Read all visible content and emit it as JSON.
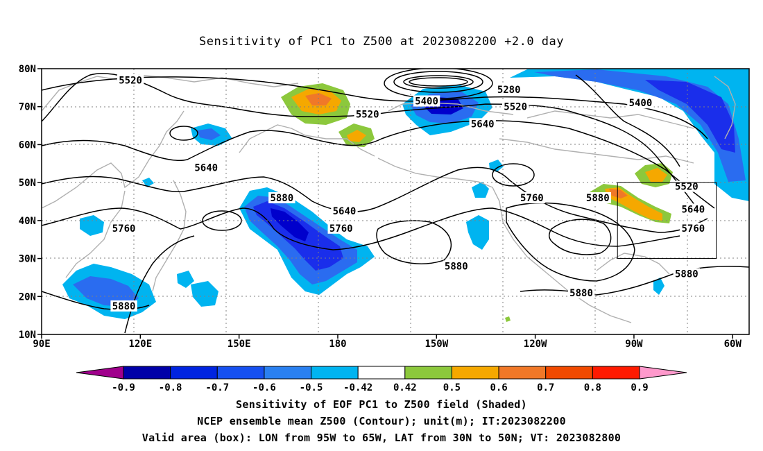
{
  "title": "Sensitivity of PC1 to Z500 at 2023082200 +2.0 day",
  "axes": {
    "lat_labels": [
      "80N",
      "70N",
      "60N",
      "50N",
      "40N",
      "30N",
      "20N",
      "10N"
    ],
    "lon_labels": [
      "90E",
      "120E",
      "150E",
      "180",
      "150W",
      "120W",
      "90W",
      "60W"
    ]
  },
  "contours": {
    "labels": [
      {
        "text": "5520",
        "lon": 117,
        "lat": 77
      },
      {
        "text": "5280",
        "lon": 232,
        "lat": 74.5
      },
      {
        "text": "5400",
        "lon": 207,
        "lat": 71.5
      },
      {
        "text": "5520",
        "lon": 189,
        "lat": 68
      },
      {
        "text": "5520",
        "lon": 234,
        "lat": 70
      },
      {
        "text": "5400",
        "lon": 272,
        "lat": 71
      },
      {
        "text": "5640",
        "lon": 224,
        "lat": 65.5
      },
      {
        "text": "5640",
        "lon": 140,
        "lat": 54
      },
      {
        "text": "5880",
        "lon": 163,
        "lat": 46
      },
      {
        "text": "5640",
        "lon": 182,
        "lat": 42.5
      },
      {
        "text": "5760",
        "lon": 181,
        "lat": 38
      },
      {
        "text": "5760",
        "lon": 115,
        "lat": 38
      },
      {
        "text": "5760",
        "lon": 239,
        "lat": 46
      },
      {
        "text": "5880",
        "lon": 259,
        "lat": 46
      },
      {
        "text": "5520",
        "lon": 286,
        "lat": 49
      },
      {
        "text": "5640",
        "lon": 288,
        "lat": 43
      },
      {
        "text": "5760",
        "lon": 288,
        "lat": 38
      },
      {
        "text": "5880",
        "lon": 216,
        "lat": 28
      },
      {
        "text": "5880",
        "lon": 115,
        "lat": 17.5
      },
      {
        "text": "5880",
        "lon": 286,
        "lat": 26
      },
      {
        "text": "5880",
        "lon": 254,
        "lat": 21
      }
    ],
    "color": "#000000"
  },
  "valid_box": {
    "lon_min": 265,
    "lon_max": 295,
    "lat_min": 30,
    "lat_max": 50
  },
  "shading": {
    "colors": {
      "very_neg": "#0000cc",
      "neg_strong": "#1a2eeb",
      "neg_mid": "#2a6cf0",
      "neg_weak": "#00b4f0",
      "pos_weak": "#8cc83c",
      "pos_mid": "#f5a800",
      "pos_strong": "#f07828",
      "pos_max": "#f04a00"
    }
  },
  "colorbar": {
    "ticks": [
      "-0.9",
      "-0.8",
      "-0.7",
      "-0.6",
      "-0.5",
      "-0.42",
      "0.42",
      "0.5",
      "0.6",
      "0.7",
      "0.8",
      "0.9"
    ],
    "colors": [
      "#a0008c",
      "#0000a8",
      "#0024e0",
      "#1650f0",
      "#2a80f0",
      "#00b4f0",
      "#ffffff",
      "#8cc83c",
      "#f5a800",
      "#f07828",
      "#f04a00",
      "#ff1a00",
      "#ff99cc"
    ]
  },
  "captions": [
    "Sensitivity of EOF PC1 to Z500 field (Shaded)",
    "NCEP ensemble mean Z500 (Contour); unit(m); IT:2023082200",
    "Valid area (box): LON from 95W to 65W, LAT from 30N to 50N; VT: 2023082800"
  ]
}
